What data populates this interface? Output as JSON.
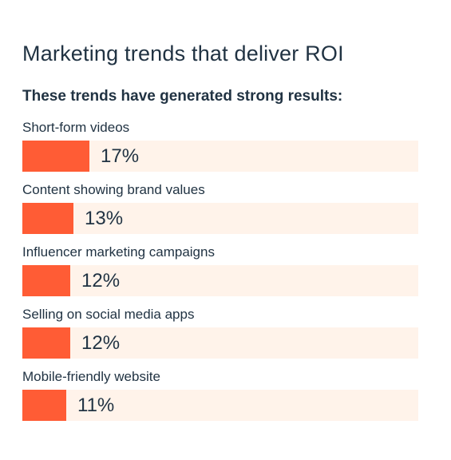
{
  "title": "Marketing trends that deliver ROI",
  "subtitle": "These trends have generated strong results:",
  "colors": {
    "bar": "#ff5c35",
    "track": "#fff3ea",
    "text": "#213343"
  },
  "chart_data": {
    "type": "bar",
    "orientation": "horizontal",
    "title": "Marketing trends that deliver ROI",
    "subtitle": "These trends have generated strong results:",
    "categories": [
      "Short-form videos",
      "Content showing brand values",
      "Influencer marketing campaigns",
      "Selling on social media apps",
      "Mobile-friendly website"
    ],
    "values": [
      17,
      13,
      12,
      12,
      11
    ],
    "value_labels": [
      "17%",
      "13%",
      "12%",
      "12%",
      "11%"
    ],
    "unit": "%",
    "xlim": [
      0,
      100
    ],
    "grid": false
  }
}
